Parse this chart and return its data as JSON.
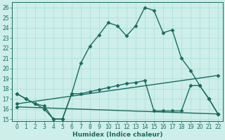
{
  "xlabel": "Humidex (Indice chaleur)",
  "xlim_min": -0.5,
  "xlim_max": 22.5,
  "ylim_min": 14.8,
  "ylim_max": 26.5,
  "yticks": [
    15,
    16,
    17,
    18,
    19,
    20,
    21,
    22,
    23,
    24,
    25,
    26
  ],
  "xticks": [
    0,
    1,
    2,
    3,
    4,
    5,
    6,
    7,
    8,
    9,
    10,
    11,
    12,
    13,
    14,
    15,
    16,
    17,
    18,
    19,
    20,
    21,
    22
  ],
  "bg_color": "#cdeee9",
  "line_color": "#1a6b60",
  "grid_color": "#aaddd8",
  "line1_x": [
    0,
    1,
    2,
    3,
    4,
    5,
    6,
    7,
    8,
    9,
    10,
    11,
    12,
    13,
    14,
    15,
    16,
    17,
    18,
    19,
    20,
    21,
    22
  ],
  "line1_y": [
    17.5,
    17.0,
    16.5,
    16.0,
    15.0,
    15.0,
    17.5,
    20.5,
    22.2,
    23.3,
    24.5,
    24.2,
    23.2,
    24.2,
    26.0,
    25.7,
    23.5,
    23.8,
    21.0,
    19.8,
    18.3,
    17.0,
    15.5
  ],
  "line2_x": [
    0,
    1,
    2,
    3,
    4,
    5,
    6,
    7,
    8,
    9,
    10,
    11,
    12,
    13,
    14,
    15,
    16,
    17,
    18,
    19,
    20,
    21,
    22
  ],
  "line2_y": [
    17.5,
    17.0,
    16.5,
    16.3,
    15.0,
    15.0,
    17.5,
    17.5,
    17.7,
    17.9,
    18.1,
    18.3,
    18.5,
    18.6,
    18.8,
    15.8,
    15.8,
    15.8,
    15.8,
    18.3,
    18.3,
    17.0,
    15.5
  ],
  "line3_x": [
    0,
    22
  ],
  "line3_y": [
    16.5,
    19.3
  ],
  "line4_x": [
    0,
    22
  ],
  "line4_y": [
    16.2,
    15.5
  ]
}
